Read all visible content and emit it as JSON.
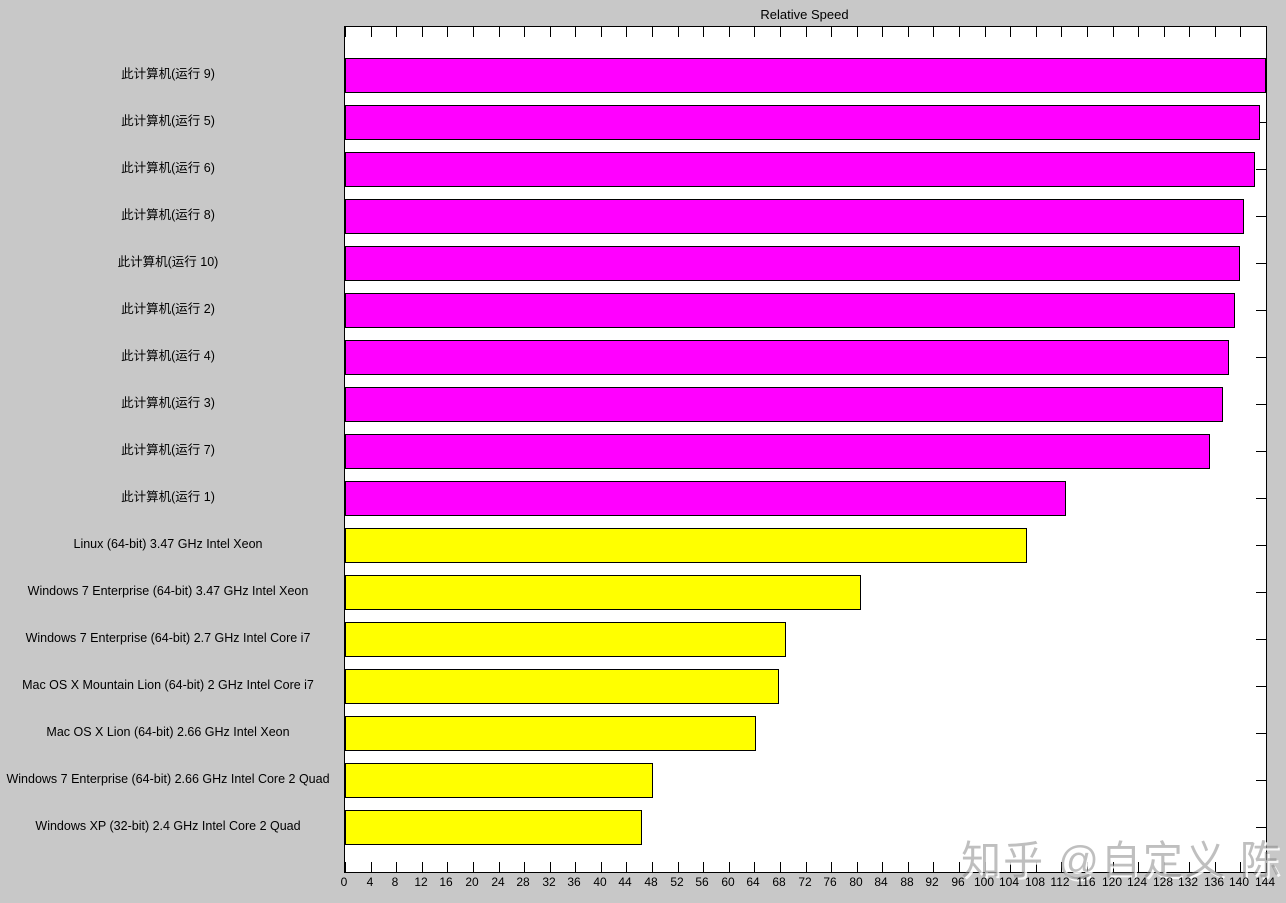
{
  "figure": {
    "background_color": "#C8C8C8",
    "plot_background": "#FFFFFF",
    "axis_color": "#000000",
    "watermark": "知乎 @自定义 陈"
  },
  "chart_data": {
    "type": "bar",
    "orientation": "horizontal",
    "title": "Relative Speed",
    "xlabel": "",
    "ylabel": "",
    "xlim": [
      0,
      144
    ],
    "xtick_step": 4,
    "grid": false,
    "legend_position": "none",
    "bar_color_this_computer": "#FF00FF",
    "bar_color_reference": "#FFFF00",
    "categories": [
      "此计算机(运行 9)",
      "此计算机(运行 5)",
      "此计算机(运行 6)",
      "此计算机(运行 8)",
      "此计算机(运行 10)",
      "此计算机(运行 2)",
      "此计算机(运行 4)",
      "此计算机(运行 3)",
      "此计算机(运行 7)",
      "此计算机(运行 1)",
      "Linux (64-bit) 3.47 GHz Intel Xeon",
      "Windows 7 Enterprise (64-bit) 3.47 GHz Intel Xeon",
      "Windows 7 Enterprise (64-bit) 2.7 GHz Intel Core i7",
      "Mac OS X Mountain Lion (64-bit) 2 GHz Intel Core i7",
      "Mac OS X Lion (64-bit) 2.66 GHz Intel Xeon",
      "Windows 7 Enterprise (64-bit) 2.66 GHz Intel Core 2 Quad",
      "Windows XP (32-bit) 2.4 GHz Intel Core 2 Quad"
    ],
    "values": [
      144.0,
      143.0,
      142.3,
      140.6,
      140.0,
      139.1,
      138.2,
      137.3,
      135.2,
      112.7,
      106.6,
      80.7,
      69.0,
      67.9,
      64.3,
      48.2,
      46.4
    ],
    "colors": [
      "#FF00FF",
      "#FF00FF",
      "#FF00FF",
      "#FF00FF",
      "#FF00FF",
      "#FF00FF",
      "#FF00FF",
      "#FF00FF",
      "#FF00FF",
      "#FF00FF",
      "#FFFF00",
      "#FFFF00",
      "#FFFF00",
      "#FFFF00",
      "#FFFF00",
      "#FFFF00",
      "#FFFF00"
    ]
  }
}
